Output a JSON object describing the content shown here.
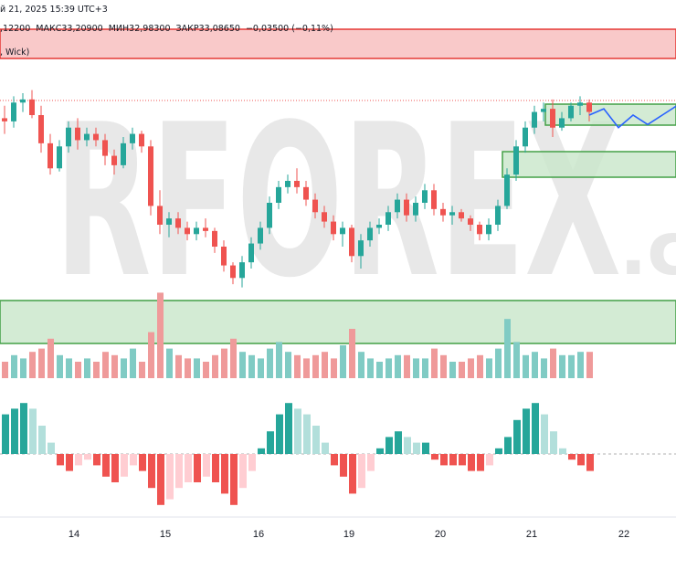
{
  "header": {
    "date_fragment": "й 21, 2025 15:39 UTC+3",
    "ohlc_fragment": ",12200  МАКС33,20900  МИН32,98300  ЗАКР33,08650  −0,03500 (−0,11%)",
    "indicator_fragment": ", Wick)"
  },
  "watermark": {
    "text": "RFOREX",
    "suffix": ".c"
  },
  "colors": {
    "bull": "#26a69a",
    "bear": "#ef5350",
    "bull_light": "#b2dfdb",
    "bear_light": "#ffcdd2",
    "zone_red_fill": "#f7b2b2",
    "zone_red_border": "#e53935",
    "zone_green_fill": "#c8e6c9",
    "zone_green_border": "#43a047",
    "forecast": "#2962ff",
    "watermark": "#e8e8e8",
    "watermark_accent": "#f3c3c3"
  },
  "chart_data": {
    "type": "candlestick",
    "x_tick_labels": [
      "14",
      "15",
      "16",
      "19",
      "20",
      "21",
      "22"
    ],
    "indicator": "volume + oscillator histogram",
    "price_candles_ohlc": [
      [
        32.72,
        32.8,
        32.62,
        32.7
      ],
      [
        32.7,
        32.86,
        32.66,
        32.82
      ],
      [
        32.82,
        32.88,
        32.76,
        32.84
      ],
      [
        32.84,
        32.9,
        32.72,
        32.74
      ],
      [
        32.74,
        32.8,
        32.5,
        32.56
      ],
      [
        32.56,
        32.62,
        32.36,
        32.4
      ],
      [
        32.4,
        32.58,
        32.38,
        32.54
      ],
      [
        32.54,
        32.7,
        32.5,
        32.66
      ],
      [
        32.66,
        32.72,
        32.52,
        32.58
      ],
      [
        32.58,
        32.66,
        32.54,
        32.62
      ],
      [
        32.62,
        32.66,
        32.54,
        32.58
      ],
      [
        32.58,
        32.62,
        32.42,
        32.48
      ],
      [
        32.48,
        32.52,
        32.36,
        32.42
      ],
      [
        32.42,
        32.6,
        32.4,
        32.56
      ],
      [
        32.56,
        32.66,
        32.52,
        32.62
      ],
      [
        32.62,
        32.64,
        32.5,
        32.54
      ],
      [
        32.54,
        32.58,
        32.1,
        32.16
      ],
      [
        32.16,
        32.26,
        31.98,
        32.04
      ],
      [
        32.04,
        32.12,
        31.96,
        32.08
      ],
      [
        32.08,
        32.12,
        31.98,
        32.02
      ],
      [
        32.02,
        32.06,
        31.94,
        31.98
      ],
      [
        31.98,
        32.06,
        31.94,
        32.02
      ],
      [
        32.02,
        32.08,
        31.96,
        32.0
      ],
      [
        32.0,
        32.02,
        31.86,
        31.9
      ],
      [
        31.9,
        31.94,
        31.74,
        31.78
      ],
      [
        31.78,
        31.8,
        31.66,
        31.7
      ],
      [
        31.7,
        31.84,
        31.64,
        31.8
      ],
      [
        31.8,
        31.96,
        31.76,
        31.92
      ],
      [
        31.92,
        32.06,
        31.88,
        32.02
      ],
      [
        32.02,
        32.22,
        31.98,
        32.18
      ],
      [
        32.18,
        32.32,
        32.14,
        32.28
      ],
      [
        32.28,
        32.36,
        32.24,
        32.32
      ],
      [
        32.32,
        32.4,
        32.24,
        32.28
      ],
      [
        32.28,
        32.32,
        32.16,
        32.2
      ],
      [
        32.2,
        32.24,
        32.08,
        32.12
      ],
      [
        32.12,
        32.16,
        32.02,
        32.06
      ],
      [
        32.06,
        32.1,
        31.94,
        31.98
      ],
      [
        31.98,
        32.06,
        31.9,
        32.02
      ],
      [
        32.02,
        32.04,
        31.8,
        31.84
      ],
      [
        31.84,
        31.98,
        31.76,
        31.94
      ],
      [
        31.94,
        32.06,
        31.9,
        32.02
      ],
      [
        32.02,
        32.08,
        31.98,
        32.04
      ],
      [
        32.04,
        32.16,
        32.0,
        32.12
      ],
      [
        32.12,
        32.24,
        32.08,
        32.2
      ],
      [
        32.2,
        32.24,
        32.06,
        32.1
      ],
      [
        32.1,
        32.22,
        32.06,
        32.18
      ],
      [
        32.18,
        32.3,
        32.14,
        32.26
      ],
      [
        32.26,
        32.3,
        32.1,
        32.14
      ],
      [
        32.14,
        32.18,
        32.06,
        32.1
      ],
      [
        32.1,
        32.16,
        32.04,
        32.12
      ],
      [
        32.12,
        32.14,
        32.06,
        32.08
      ],
      [
        32.08,
        32.1,
        32.0,
        32.04
      ],
      [
        32.04,
        32.06,
        31.94,
        31.98
      ],
      [
        31.98,
        32.08,
        31.94,
        32.04
      ],
      [
        32.04,
        32.2,
        32.0,
        32.16
      ],
      [
        32.16,
        32.4,
        32.14,
        32.36
      ],
      [
        32.36,
        32.58,
        32.32,
        32.54
      ],
      [
        32.54,
        32.7,
        32.5,
        32.66
      ],
      [
        32.66,
        32.8,
        32.62,
        32.76
      ],
      [
        32.76,
        32.82,
        32.7,
        32.78
      ],
      [
        32.78,
        32.84,
        32.6,
        32.66
      ],
      [
        32.66,
        32.76,
        32.64,
        32.72
      ],
      [
        32.72,
        32.82,
        32.7,
        32.8
      ],
      [
        32.8,
        32.86,
        32.74,
        32.82
      ],
      [
        32.82,
        32.84,
        32.7,
        32.76
      ]
    ],
    "forecast_path": [
      32.74,
      32.78,
      32.66,
      32.74,
      32.68,
      32.74,
      32.8
    ],
    "resistance_zone": [
      32.88,
      33.04
    ],
    "support_zones": [
      [
        32.63,
        32.7
      ],
      [
        32.42,
        32.52
      ],
      [
        31.5,
        31.66
      ]
    ],
    "volume": [
      5,
      7,
      6,
      8,
      9,
      12,
      7,
      6,
      5,
      6,
      5,
      8,
      7,
      6,
      9,
      5,
      14,
      26,
      9,
      7,
      6,
      6,
      5,
      7,
      9,
      12,
      8,
      7,
      6,
      9,
      11,
      8,
      7,
      6,
      7,
      8,
      6,
      10,
      15,
      8,
      6,
      5,
      6,
      7,
      7,
      6,
      6,
      9,
      7,
      5,
      5,
      6,
      7,
      6,
      9,
      18,
      11,
      7,
      8,
      6,
      9,
      7,
      7,
      8,
      8
    ],
    "oscillator": [
      0.7,
      0.8,
      0.9,
      0.8,
      0.5,
      0.2,
      -0.2,
      -0.3,
      -0.2,
      -0.1,
      -0.2,
      -0.4,
      -0.5,
      -0.4,
      -0.2,
      -0.3,
      -0.6,
      -0.9,
      -0.8,
      -0.6,
      -0.5,
      -0.5,
      -0.4,
      -0.5,
      -0.7,
      -0.9,
      -0.6,
      -0.3,
      0.1,
      0.4,
      0.7,
      0.9,
      0.8,
      0.7,
      0.5,
      0.2,
      -0.2,
      -0.4,
      -0.7,
      -0.6,
      -0.3,
      0.1,
      0.3,
      0.4,
      0.3,
      0.2,
      0.2,
      -0.1,
      -0.2,
      -0.2,
      -0.2,
      -0.3,
      -0.3,
      -0.2,
      0.1,
      0.3,
      0.6,
      0.8,
      0.9,
      0.7,
      0.4,
      0.1,
      -0.1,
      -0.2,
      -0.3
    ]
  }
}
